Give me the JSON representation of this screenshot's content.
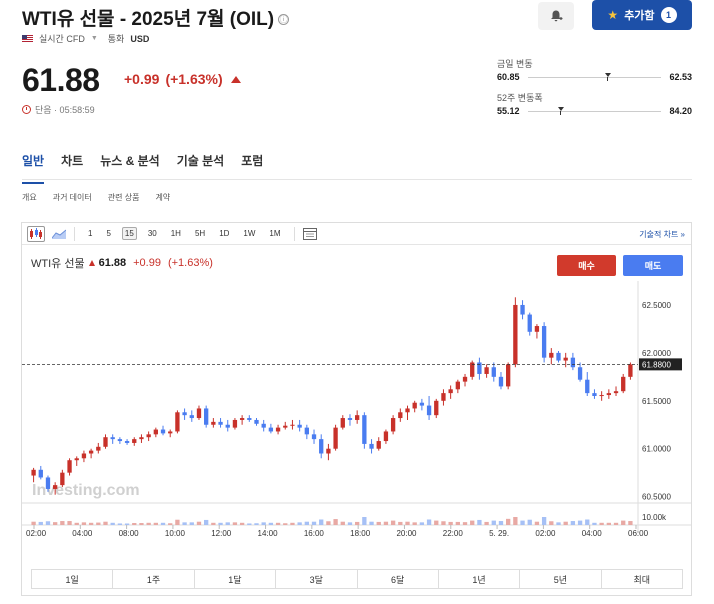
{
  "header": {
    "title": "WTI유 선물 - 2025년 7월 (OIL)",
    "info_icon": "ⓘ",
    "flag": "us-flag-icon",
    "realtime": "실시간 CFD",
    "currency_label": "통화",
    "currency": "USD",
    "add_button": "추가함",
    "add_count": "1"
  },
  "quote": {
    "price": "61.88",
    "change_abs": "+0.99",
    "change_pct": "(+1.63%)",
    "status": "단음 · 05:58:59"
  },
  "ranges": {
    "day_label": "금일 변동",
    "day_low": "60.85",
    "day_high": "62.53",
    "day_position": 0.58,
    "week52_label": "52주 변동폭",
    "week52_low": "55.12",
    "week52_high": "84.20",
    "week52_position": 0.23
  },
  "tabs": [
    "일반",
    "차트",
    "뉴스 & 분석",
    "기술 분석",
    "포럼"
  ],
  "subtabs": [
    "개요",
    "과거 데이터",
    "관련 상품",
    "계약"
  ],
  "toolbar": {
    "timeframes": [
      "1",
      "5",
      "15",
      "30",
      "1H",
      "5H",
      "1D",
      "1W",
      "1M"
    ],
    "selected": "15",
    "tech_link": "기술적 차트 »"
  },
  "legend": {
    "name": "WTI유 선물",
    "price": "61.88",
    "change": "+0.99",
    "pct": "(+1.63%)"
  },
  "trade": {
    "buy": "매수",
    "sell": "매도"
  },
  "periods": [
    "1일",
    "1주",
    "1달",
    "3달",
    "6달",
    "1년",
    "5년",
    "최대"
  ],
  "colors": {
    "up": "#c8312a",
    "down": "#4a7cf0",
    "accent": "#1d50a8"
  },
  "chart_data": {
    "type": "candlestick",
    "watermark": "Investing.com",
    "y_ticks": [
      "62.5000",
      "62.0000",
      "61.5000",
      "61.0000",
      "60.5000"
    ],
    "ylim": [
      60.35,
      62.75
    ],
    "current_price": 61.88,
    "current_label": "61.8800",
    "volume_label": "10.00k",
    "x_labels": [
      "02:00",
      "04:00",
      "08:00",
      "10:00",
      "12:00",
      "14:00",
      "16:00",
      "18:00",
      "20:00",
      "22:00",
      "5. 29.",
      "02:00",
      "04:00",
      "06:00"
    ],
    "candles": [
      [
        60.72,
        60.8,
        60.65,
        60.78
      ],
      [
        60.78,
        60.82,
        60.68,
        60.7
      ],
      [
        60.7,
        60.72,
        60.55,
        60.58
      ],
      [
        60.58,
        60.65,
        60.52,
        60.62
      ],
      [
        60.62,
        60.78,
        60.6,
        60.75
      ],
      [
        60.75,
        60.9,
        60.72,
        60.88
      ],
      [
        60.88,
        60.92,
        60.82,
        60.9
      ],
      [
        60.9,
        60.98,
        60.86,
        60.95
      ],
      [
        60.95,
        61.0,
        60.9,
        60.98
      ],
      [
        60.98,
        61.06,
        60.95,
        61.02
      ],
      [
        61.02,
        61.15,
        61.0,
        61.12
      ],
      [
        61.12,
        61.15,
        61.05,
        61.1
      ],
      [
        61.1,
        61.12,
        61.05,
        61.08
      ],
      [
        61.08,
        61.1,
        61.04,
        61.06
      ],
      [
        61.06,
        61.12,
        61.03,
        61.1
      ],
      [
        61.1,
        61.15,
        61.06,
        61.12
      ],
      [
        61.12,
        61.18,
        61.08,
        61.15
      ],
      [
        61.15,
        61.22,
        61.12,
        61.2
      ],
      [
        61.2,
        61.24,
        61.14,
        61.16
      ],
      [
        61.16,
        61.2,
        61.12,
        61.18
      ],
      [
        61.18,
        61.4,
        61.16,
        61.38
      ],
      [
        61.38,
        61.42,
        61.3,
        61.35
      ],
      [
        61.35,
        61.4,
        61.28,
        61.32
      ],
      [
        61.32,
        61.45,
        61.3,
        61.42
      ],
      [
        61.42,
        61.45,
        61.22,
        61.25
      ],
      [
        61.25,
        61.32,
        61.22,
        61.28
      ],
      [
        61.28,
        61.32,
        61.22,
        61.25
      ],
      [
        61.25,
        61.3,
        61.18,
        61.22
      ],
      [
        61.22,
        61.32,
        61.2,
        61.3
      ],
      [
        61.3,
        61.35,
        61.25,
        61.32
      ],
      [
        61.32,
        61.35,
        61.28,
        61.3
      ],
      [
        61.3,
        61.32,
        61.24,
        61.26
      ],
      [
        61.26,
        61.3,
        61.18,
        61.22
      ],
      [
        61.22,
        61.26,
        61.16,
        61.18
      ],
      [
        61.18,
        61.25,
        61.15,
        61.22
      ],
      [
        61.22,
        61.28,
        61.2,
        61.24
      ],
      [
        61.24,
        61.3,
        61.2,
        61.25
      ],
      [
        61.25,
        61.3,
        61.18,
        61.22
      ],
      [
        61.22,
        61.25,
        61.1,
        61.15
      ],
      [
        61.15,
        61.2,
        61.05,
        61.1
      ],
      [
        61.1,
        61.15,
        60.9,
        60.95
      ],
      [
        60.95,
        61.05,
        60.88,
        61.0
      ],
      [
        61.0,
        61.25,
        60.98,
        61.22
      ],
      [
        61.22,
        61.35,
        61.2,
        61.32
      ],
      [
        61.32,
        61.36,
        61.24,
        61.3
      ],
      [
        61.3,
        61.4,
        61.26,
        61.35
      ],
      [
        61.35,
        61.38,
        61.0,
        61.05
      ],
      [
        61.05,
        61.1,
        60.95,
        61.0
      ],
      [
        61.0,
        61.12,
        60.98,
        61.08
      ],
      [
        61.08,
        61.2,
        61.05,
        61.18
      ],
      [
        61.18,
        61.35,
        61.15,
        61.32
      ],
      [
        61.32,
        61.42,
        61.28,
        61.38
      ],
      [
        61.38,
        61.45,
        61.3,
        61.42
      ],
      [
        61.42,
        61.5,
        61.38,
        61.48
      ],
      [
        61.48,
        61.52,
        61.4,
        61.45
      ],
      [
        61.45,
        61.55,
        61.3,
        61.35
      ],
      [
        61.35,
        61.52,
        61.32,
        61.5
      ],
      [
        61.5,
        61.62,
        61.45,
        61.58
      ],
      [
        61.58,
        61.66,
        61.52,
        61.62
      ],
      [
        61.62,
        61.72,
        61.58,
        61.7
      ],
      [
        61.7,
        61.78,
        61.65,
        61.75
      ],
      [
        61.75,
        61.92,
        61.72,
        61.9
      ],
      [
        61.9,
        61.95,
        61.72,
        61.78
      ],
      [
        61.78,
        61.88,
        61.74,
        61.85
      ],
      [
        61.85,
        61.9,
        61.7,
        61.75
      ],
      [
        61.75,
        61.8,
        61.62,
        61.65
      ],
      [
        61.65,
        61.9,
        61.62,
        61.88
      ],
      [
        61.88,
        62.58,
        61.85,
        62.5
      ],
      [
        62.5,
        62.55,
        62.35,
        62.4
      ],
      [
        62.4,
        62.42,
        62.18,
        62.22
      ],
      [
        62.22,
        62.3,
        62.15,
        62.28
      ],
      [
        62.28,
        62.32,
        61.9,
        61.95
      ],
      [
        61.95,
        62.05,
        61.88,
        62.0
      ],
      [
        62.0,
        62.02,
        61.9,
        61.92
      ],
      [
        61.92,
        62.0,
        61.85,
        61.95
      ],
      [
        61.95,
        62.0,
        61.82,
        61.85
      ],
      [
        61.85,
        61.9,
        61.7,
        61.72
      ],
      [
        61.72,
        61.8,
        61.55,
        61.58
      ],
      [
        61.58,
        61.62,
        61.52,
        61.55
      ],
      [
        61.55,
        61.6,
        61.5,
        61.56
      ],
      [
        61.56,
        61.62,
        61.52,
        61.58
      ],
      [
        61.58,
        61.65,
        61.55,
        61.6
      ],
      [
        61.6,
        61.78,
        61.58,
        61.75
      ],
      [
        61.75,
        61.9,
        61.72,
        61.88
      ]
    ]
  },
  "icons": {
    "bell": "bell-plus-icon",
    "star": "star-icon",
    "candles": "candlestick-chart-icon",
    "area": "area-chart-icon",
    "table": "table-icon",
    "clock": "clock-icon"
  }
}
